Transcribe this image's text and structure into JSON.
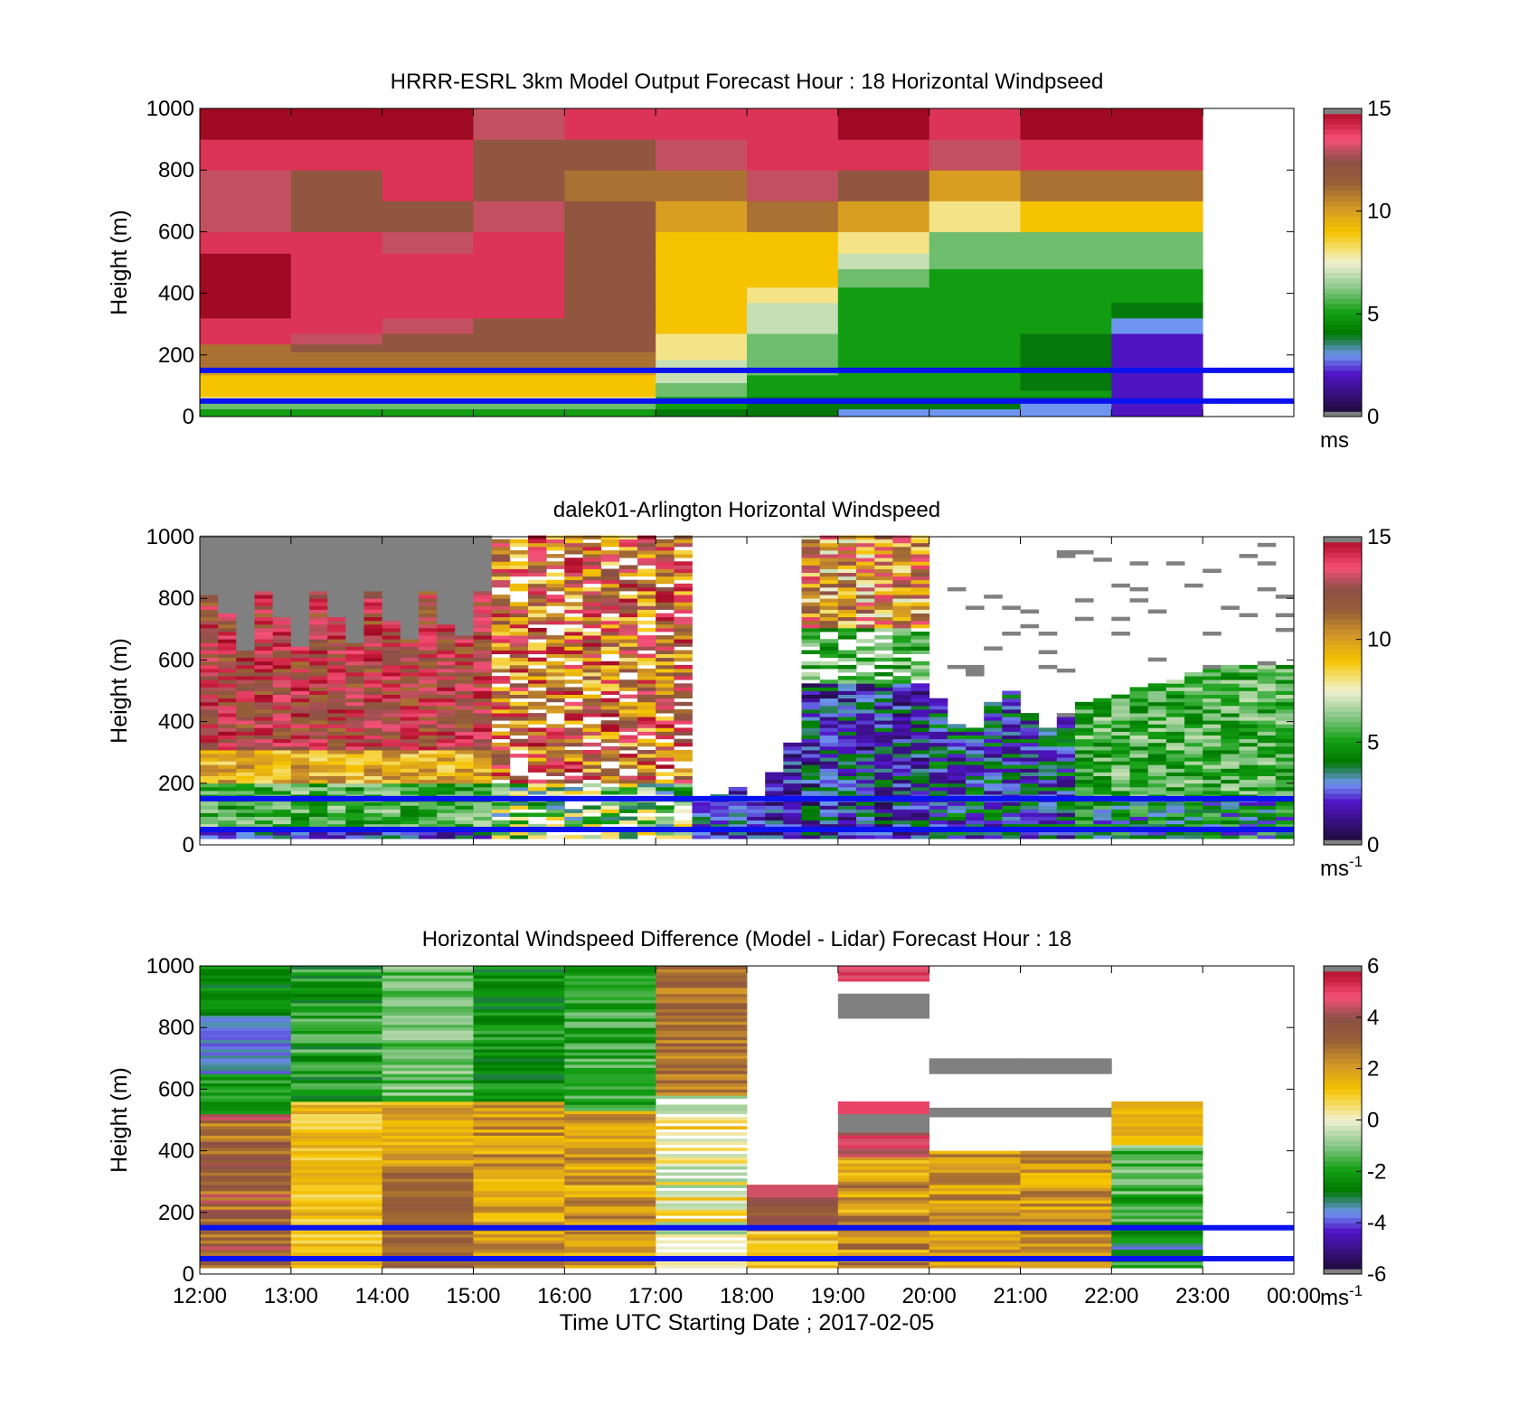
{
  "chart_data": [
    {
      "type": "heatmap",
      "title": "HRRR-ESRL 3km Model Output   Forecast Hour : 18 Horizontal Windpseed",
      "ylabel": "Height (m)",
      "xlabel": "",
      "xlim": [
        12,
        24
      ],
      "ylim": [
        0,
        1000
      ],
      "yticks": [
        0,
        200,
        400,
        600,
        800,
        1000
      ],
      "xticks": [
        12,
        13,
        14,
        15,
        16,
        17,
        18,
        19,
        20,
        21,
        22,
        23,
        24
      ],
      "xtick_labels": [],
      "colorbar": {
        "min": 0,
        "max": 15,
        "ticks": [
          "0",
          "5",
          "10",
          "15"
        ],
        "unit": "ms",
        "unit_sup": ""
      },
      "reference_lines_m": [
        150,
        50
      ],
      "row_edges": [
        0,
        25,
        45,
        65,
        85,
        110,
        135,
        160,
        185,
        210,
        235,
        270,
        320,
        370,
        420,
        480,
        530,
        600,
        700,
        800,
        900,
        1000
      ],
      "values": [
        [
          5,
          5,
          5,
          5,
          5,
          4,
          4,
          3,
          3,
          3,
          2
        ],
        [
          6,
          6,
          6,
          6,
          6,
          5,
          4,
          4,
          4,
          3,
          2
        ],
        [
          8,
          8,
          8,
          8,
          8,
          5,
          4,
          4,
          4,
          4,
          2
        ],
        [
          9,
          9,
          9,
          9,
          9,
          6,
          5,
          5,
          5,
          5,
          2
        ],
        [
          9,
          9,
          9,
          9,
          9,
          6,
          5,
          5,
          5,
          4,
          2
        ],
        [
          9,
          9,
          9,
          9,
          9,
          7,
          5,
          5,
          5,
          4,
          2
        ],
        [
          10,
          10,
          10,
          10,
          10,
          7,
          6,
          5,
          5,
          4,
          2
        ],
        [
          11,
          11,
          11,
          11,
          11,
          7,
          6,
          5,
          5,
          4,
          2
        ],
        [
          11,
          11,
          11,
          11,
          11,
          8,
          6,
          5,
          5,
          4,
          2
        ],
        [
          11,
          12,
          12,
          12,
          12,
          8,
          6,
          5,
          5,
          4,
          2
        ],
        [
          14,
          13,
          12,
          12,
          12,
          8,
          6,
          5,
          5,
          4,
          2
        ],
        [
          14,
          14,
          13,
          12,
          12,
          9,
          7,
          5,
          5,
          5,
          3
        ],
        [
          15,
          14,
          14,
          14,
          12,
          9,
          7,
          5,
          5,
          5,
          4
        ],
        [
          15,
          14,
          14,
          14,
          12,
          9,
          8,
          5,
          5,
          5,
          5
        ],
        [
          15,
          14,
          14,
          14,
          12,
          9,
          9,
          6,
          5,
          5,
          5
        ],
        [
          15,
          14,
          14,
          14,
          12,
          9,
          9,
          7,
          6,
          6,
          6
        ],
        [
          14,
          14,
          13,
          14,
          12,
          9,
          9,
          8,
          6,
          6,
          6
        ],
        [
          13,
          12,
          12,
          13,
          12,
          10,
          11,
          10,
          8,
          9,
          9
        ],
        [
          13,
          12,
          14,
          12,
          11,
          11,
          13,
          12,
          10,
          11,
          11
        ],
        [
          14,
          14,
          14,
          12,
          12,
          13,
          14,
          14,
          13,
          14,
          14
        ],
        [
          15,
          15,
          15,
          13,
          14,
          14,
          14,
          15,
          14,
          15,
          15
        ]
      ]
    },
    {
      "type": "heatmap",
      "title": "dalek01-Arlington  Horizontal Windspeed",
      "ylabel": "Height (m)",
      "xlabel": "",
      "xlim": [
        12,
        24
      ],
      "ylim": [
        0,
        1000
      ],
      "yticks": [
        0,
        200,
        400,
        600,
        800,
        1000
      ],
      "xticks": [
        12,
        13,
        14,
        15,
        16,
        17,
        18,
        19,
        20,
        21,
        22,
        23,
        24
      ],
      "xtick_labels": [],
      "colorbar": {
        "min": 0,
        "max": 15,
        "ticks": [
          "0",
          "5",
          "10",
          "15"
        ],
        "unit": "ms",
        "unit_sup": "-1"
      },
      "reference_lines_m": [
        150,
        50
      ]
    },
    {
      "type": "heatmap",
      "title": "Horizontal Windspeed Difference (Model - Lidar) Forecast Hour : 18",
      "ylabel": "Height (m)",
      "xlabel": "Time UTC  Starting Date ; 2017-02-05",
      "xlim": [
        12,
        24
      ],
      "ylim": [
        0,
        1000
      ],
      "yticks": [
        0,
        200,
        400,
        600,
        800,
        1000
      ],
      "xticks": [
        12,
        13,
        14,
        15,
        16,
        17,
        18,
        19,
        20,
        21,
        22,
        23,
        24
      ],
      "xtick_labels": [
        "12:00",
        "13:00",
        "14:00",
        "15:00",
        "16:00",
        "17:00",
        "18:00",
        "19:00",
        "20:00",
        "21:00",
        "22:00",
        "23:00",
        "00:00"
      ],
      "colorbar": {
        "min": -6,
        "max": 6,
        "ticks": [
          "-6",
          "-4",
          "-2",
          "0",
          "2",
          "4",
          "6"
        ],
        "unit": "ms",
        "unit_sup": "-1"
      },
      "reference_lines_m": [
        150,
        50
      ]
    }
  ]
}
